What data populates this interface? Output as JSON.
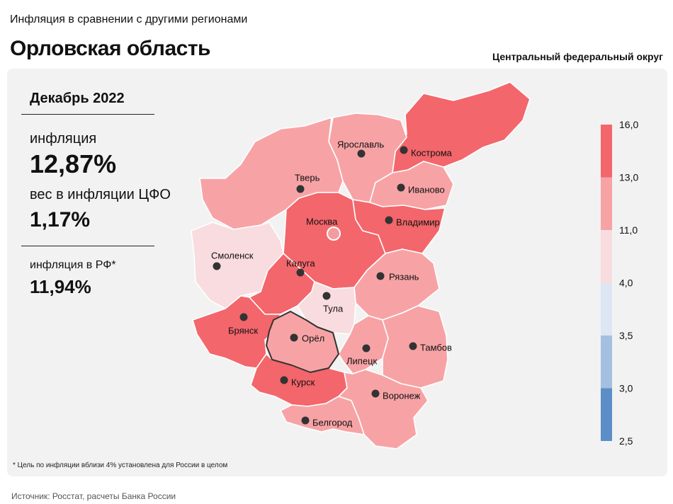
{
  "header": {
    "supertitle": "Инфляция в сравнении с другими регионами",
    "title": "Орловская область",
    "district": "Центральный федеральный округ"
  },
  "stats": {
    "period": "Декабрь 2022",
    "inflation_label": "инфляция",
    "inflation_value": "12,87%",
    "weight_label": "вес в инфляции ЦФО",
    "weight_value": "1,17%",
    "rf_label": "инфляция в РФ*",
    "rf_value": "11,94%"
  },
  "footnote": "* Цель по инфляции вблизи 4% установлена для России в целом",
  "source": "Источник: Росстат, расчеты Банка России",
  "legend": {
    "ticks": [
      "16,0",
      "13,0",
      "11,0",
      "4,0",
      "3,5",
      "3,0",
      "2,5"
    ],
    "colors": [
      "#f3666b",
      "#f7a3a5",
      "#f9dcdf",
      "#dde6f3",
      "#a4bfe0",
      "#5b8ec7"
    ]
  },
  "colors": {
    "highlight_border": "#333333",
    "region_border": "#ffffff",
    "capital_ring": "#ffffff"
  },
  "regions": [
    {
      "id": "kostroma",
      "name": "Кострома",
      "color": "#f3666b"
    },
    {
      "id": "yaroslavl",
      "name": "Ярославль",
      "color": "#f7a3a5"
    },
    {
      "id": "tver",
      "name": "Тверь",
      "color": "#f7a3a5"
    },
    {
      "id": "ivanovo",
      "name": "Иваново",
      "color": "#f7a3a5"
    },
    {
      "id": "moscow",
      "name": "Москва",
      "color": "#f3666b"
    },
    {
      "id": "vladimir",
      "name": "Владимир",
      "color": "#f3666b"
    },
    {
      "id": "smolensk",
      "name": "Смоленск",
      "color": "#f9dcdf"
    },
    {
      "id": "kaluga",
      "name": "Калуга",
      "color": "#f3666b"
    },
    {
      "id": "ryazan",
      "name": "Рязань",
      "color": "#f7a3a5"
    },
    {
      "id": "tula",
      "name": "Тула",
      "color": "#f9dcdf"
    },
    {
      "id": "bryansk",
      "name": "Брянск",
      "color": "#f3666b"
    },
    {
      "id": "orel",
      "name": "Орёл",
      "color": "#f7a3a5"
    },
    {
      "id": "lipetsk",
      "name": "Липецк",
      "color": "#f7a3a5"
    },
    {
      "id": "tambov",
      "name": "Тамбов",
      "color": "#f7a3a5"
    },
    {
      "id": "kursk",
      "name": "Курск",
      "color": "#f3666b"
    },
    {
      "id": "voronezh",
      "name": "Воронеж",
      "color": "#f7a3a5"
    },
    {
      "id": "belgorod",
      "name": "Белгород",
      "color": "#f7a3a5"
    }
  ]
}
